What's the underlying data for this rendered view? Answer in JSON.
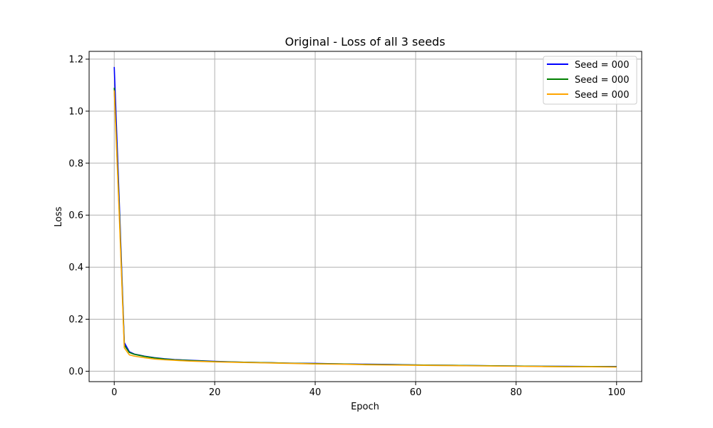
{
  "chart_data": {
    "type": "line",
    "title": "Original - Loss of all 3 seeds",
    "xlabel": "Epoch",
    "ylabel": "Loss",
    "xlim": [
      -5,
      105
    ],
    "ylim": [
      -0.04,
      1.23
    ],
    "xticks": [
      0,
      20,
      40,
      60,
      80,
      100
    ],
    "yticks": [
      0.0,
      0.2,
      0.4,
      0.6,
      0.8,
      1.0,
      1.2
    ],
    "xtick_labels": [
      "0",
      "20",
      "40",
      "60",
      "80",
      "100"
    ],
    "ytick_labels": [
      "0.0",
      "0.2",
      "0.4",
      "0.6",
      "0.8",
      "1.0",
      "1.2"
    ],
    "grid": true,
    "legend_position": "top-right",
    "series": [
      {
        "name": "Seed = 000",
        "color": "#0000ff",
        "x": [
          0,
          1,
          2,
          3,
          4,
          5,
          6,
          8,
          10,
          12,
          15,
          20,
          25,
          30,
          35,
          40,
          45,
          50,
          55,
          60,
          65,
          70,
          75,
          80,
          85,
          90,
          95,
          100
        ],
        "y": [
          1.17,
          0.65,
          0.11,
          0.075,
          0.066,
          0.062,
          0.058,
          0.052,
          0.048,
          0.045,
          0.042,
          0.038,
          0.035,
          0.033,
          0.031,
          0.03,
          0.028,
          0.027,
          0.026,
          0.024,
          0.023,
          0.022,
          0.021,
          0.02,
          0.019,
          0.019,
          0.018,
          0.018
        ]
      },
      {
        "name": "Seed = 000",
        "color": "#008000",
        "x": [
          0,
          1,
          2,
          3,
          4,
          5,
          6,
          8,
          10,
          12,
          15,
          20,
          25,
          30,
          35,
          40,
          45,
          50,
          55,
          60,
          65,
          70,
          75,
          80,
          85,
          90,
          95,
          100
        ],
        "y": [
          1.09,
          0.62,
          0.1,
          0.072,
          0.065,
          0.061,
          0.057,
          0.051,
          0.047,
          0.044,
          0.041,
          0.037,
          0.035,
          0.033,
          0.031,
          0.029,
          0.028,
          0.026,
          0.025,
          0.024,
          0.023,
          0.022,
          0.021,
          0.02,
          0.019,
          0.018,
          0.018,
          0.017
        ]
      },
      {
        "name": "Seed = 000",
        "color": "#ffa500",
        "x": [
          0,
          1,
          2,
          3,
          4,
          5,
          6,
          8,
          10,
          12,
          15,
          20,
          25,
          30,
          35,
          40,
          45,
          50,
          55,
          60,
          65,
          70,
          75,
          80,
          85,
          90,
          95,
          100
        ],
        "y": [
          1.08,
          0.6,
          0.09,
          0.063,
          0.058,
          0.055,
          0.052,
          0.047,
          0.044,
          0.042,
          0.039,
          0.036,
          0.034,
          0.032,
          0.03,
          0.028,
          0.027,
          0.025,
          0.024,
          0.023,
          0.022,
          0.021,
          0.02,
          0.019,
          0.018,
          0.017,
          0.017,
          0.016
        ]
      }
    ]
  }
}
